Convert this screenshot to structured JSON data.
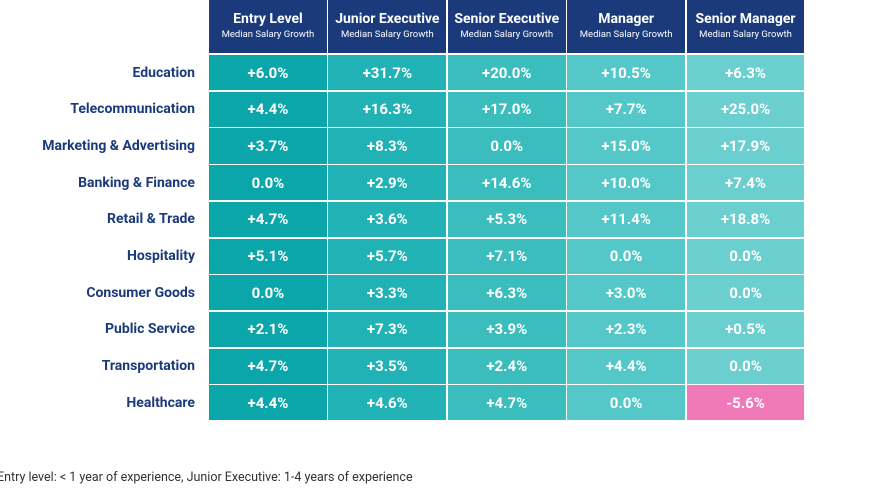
{
  "table": {
    "columns": [
      {
        "title": "Entry Level",
        "subtitle": "Median Salary Growth"
      },
      {
        "title": "Junior Executive",
        "subtitle": "Median Salary Growth"
      },
      {
        "title": "Senior Executive",
        "subtitle": "Median Salary Growth"
      },
      {
        "title": "Manager",
        "subtitle": "Median Salary Growth"
      },
      {
        "title": "Senior Manager",
        "subtitle": "Median Salary Growth"
      }
    ],
    "rows": [
      {
        "label": "Education",
        "cells": [
          "+6.0%",
          "+31.7%",
          "+20.0%",
          "+10.5%",
          "+6.3%"
        ]
      },
      {
        "label": "Telecommunication",
        "cells": [
          "+4.4%",
          "+16.3%",
          "+17.0%",
          "+7.7%",
          "+25.0%"
        ]
      },
      {
        "label": "Marketing & Advertising",
        "cells": [
          "+3.7%",
          "+8.3%",
          "0.0%",
          "+15.0%",
          "+17.9%"
        ]
      },
      {
        "label": "Banking & Finance",
        "cells": [
          "0.0%",
          "+2.9%",
          "+14.6%",
          "+10.0%",
          "+7.4%"
        ]
      },
      {
        "label": "Retail & Trade",
        "cells": [
          "+4.7%",
          "+3.6%",
          "+5.3%",
          "+11.4%",
          "+18.8%"
        ]
      },
      {
        "label": "Hospitality",
        "cells": [
          "+5.1%",
          "+5.7%",
          "+7.1%",
          "0.0%",
          "0.0%"
        ]
      },
      {
        "label": "Consumer Goods",
        "cells": [
          "0.0%",
          "+3.3%",
          "+6.3%",
          "+3.0%",
          "0.0%"
        ]
      },
      {
        "label": "Public Service",
        "cells": [
          "+2.1%",
          "+7.3%",
          "+3.9%",
          "+2.3%",
          "+0.5%"
        ]
      },
      {
        "label": "Transportation",
        "cells": [
          "+4.7%",
          "+3.5%",
          "+2.4%",
          "+4.4%",
          "0.0%"
        ]
      },
      {
        "label": "Healthcare",
        "cells": [
          "+4.4%",
          "+4.6%",
          "+4.7%",
          "0.0%",
          "-5.6%"
        ]
      }
    ]
  },
  "footnote": "Entry level: < 1 year of experience, Junior Executive: 1-4 years of experience"
}
